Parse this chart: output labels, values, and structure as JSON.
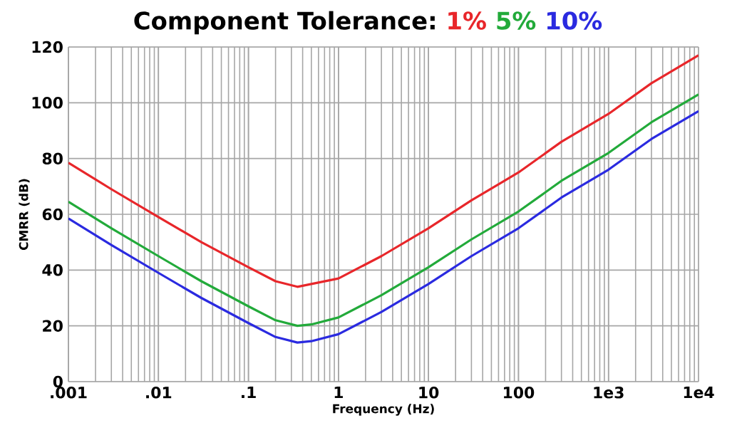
{
  "chart_data": {
    "type": "line",
    "title": "Component Tolerance:",
    "xlabel": "Frequency (Hz)",
    "ylabel": "CMRR (dB)",
    "log": "x",
    "grid": true,
    "legend": "top",
    "marker": "none",
    "line_style": "solid",
    "xlim": [
      0.001,
      10000
    ],
    "ylim": [
      0,
      120
    ],
    "xticks": [
      {
        "value": 0.001,
        "label": ".001"
      },
      {
        "value": 0.01,
        "label": ".01"
      },
      {
        "value": 0.1,
        "label": ".1"
      },
      1,
      10,
      100,
      {
        "value": 1000,
        "label": "1e3"
      },
      {
        "value": 10000,
        "label": "1e4"
      }
    ],
    "yticks": [
      0,
      20,
      40,
      60,
      80,
      100,
      120
    ],
    "x": [
      0.001,
      0.003,
      0.01,
      0.03,
      0.1,
      0.2,
      0.35,
      0.5,
      1,
      3,
      10,
      30,
      100,
      300,
      1000,
      3000,
      10000
    ],
    "series": [
      {
        "name": "1%",
        "color": "#e8262a",
        "values": [
          78.5,
          69,
          59,
          50,
          41,
          36,
          34,
          35,
          37,
          45,
          55,
          65,
          75,
          86,
          96,
          107,
          117
        ]
      },
      {
        "name": "5%",
        "color": "#22aa3a",
        "values": [
          64.5,
          55,
          45,
          36,
          27,
          22,
          20,
          20.5,
          23,
          31,
          41,
          51,
          61,
          72,
          82,
          93,
          103
        ]
      },
      {
        "name": "10%",
        "color": "#2a2ae0",
        "values": [
          58.5,
          49,
          39,
          30,
          21,
          16,
          14,
          14.5,
          17,
          25,
          35,
          45,
          55,
          66,
          76,
          87,
          97
        ]
      }
    ]
  }
}
